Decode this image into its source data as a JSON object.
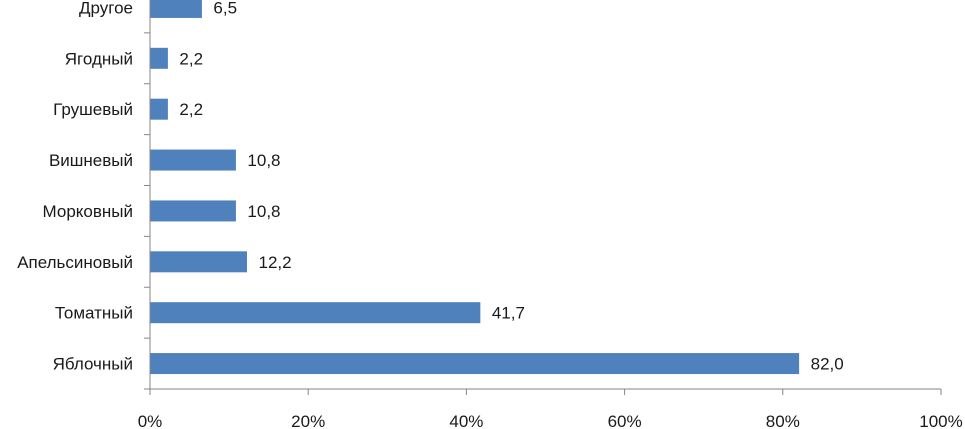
{
  "chart_data": {
    "type": "bar",
    "orientation": "horizontal",
    "categories": [
      "Яблочный",
      "Томатный",
      "Апельсиновый",
      "Морковный",
      "Вишневый",
      "Грушевый",
      "Ягодный",
      "Другое"
    ],
    "values": [
      82.0,
      41.7,
      12.2,
      10.8,
      10.8,
      2.2,
      2.2,
      6.5
    ],
    "value_labels": [
      "82,0",
      "41,7",
      "12,2",
      "10,8",
      "10,8",
      "2,2",
      "2,2",
      "6,5"
    ],
    "x_ticks": [
      0,
      20,
      40,
      60,
      80,
      100
    ],
    "x_tick_labels": [
      "0%",
      "20%",
      "40%",
      "60%",
      "80%",
      "100%"
    ],
    "xlim": [
      0,
      100
    ],
    "title": "",
    "xlabel": "",
    "ylabel": "",
    "grid": false,
    "legend": "none",
    "bar_color": "#4f81bd"
  }
}
